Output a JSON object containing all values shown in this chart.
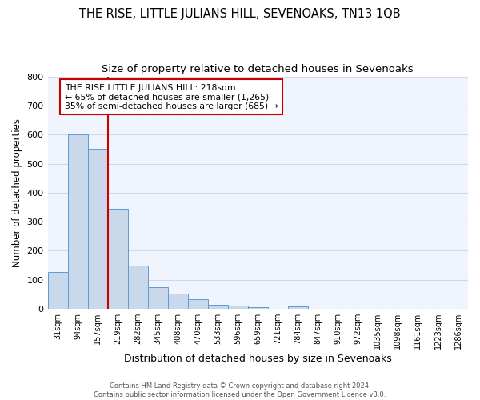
{
  "title": "THE RISE, LITTLE JULIANS HILL, SEVENOAKS, TN13 1QB",
  "subtitle": "Size of property relative to detached houses in Sevenoaks",
  "xlabel": "Distribution of detached houses by size in Sevenoaks",
  "ylabel": "Number of detached properties",
  "bin_labels": [
    "31sqm",
    "94sqm",
    "157sqm",
    "219sqm",
    "282sqm",
    "345sqm",
    "408sqm",
    "470sqm",
    "533sqm",
    "596sqm",
    "659sqm",
    "721sqm",
    "784sqm",
    "847sqm",
    "910sqm",
    "972sqm",
    "1035sqm",
    "1098sqm",
    "1161sqm",
    "1223sqm",
    "1286sqm"
  ],
  "bar_heights": [
    128,
    600,
    550,
    345,
    148,
    75,
    52,
    32,
    13,
    10,
    6,
    0,
    8,
    0,
    0,
    0,
    0,
    0,
    0,
    0,
    0
  ],
  "bar_color": "#c9d9eb",
  "bar_edge_color": "#5b9bd5",
  "red_line_x": 3.0,
  "annotation_text_line1": "THE RISE LITTLE JULIANS HILL: 218sqm",
  "annotation_text_line2": "← 65% of detached houses are smaller (1,265)",
  "annotation_text_line3": "35% of semi-detached houses are larger (685) →",
  "annotation_box_color": "white",
  "annotation_box_edge_color": "#cc0000",
  "ylim": [
    0,
    800
  ],
  "yticks": [
    0,
    100,
    200,
    300,
    400,
    500,
    600,
    700,
    800
  ],
  "footer_text": "Contains HM Land Registry data © Crown copyright and database right 2024.\nContains public sector information licensed under the Open Government Licence v3.0.",
  "fig_background_color": "white",
  "plot_background_color": "#f0f4fc",
  "grid_color": "#d0d8ee",
  "title_fontsize": 10.5,
  "subtitle_fontsize": 9.5,
  "ylabel_fontsize": 8.5,
  "xlabel_fontsize": 9
}
